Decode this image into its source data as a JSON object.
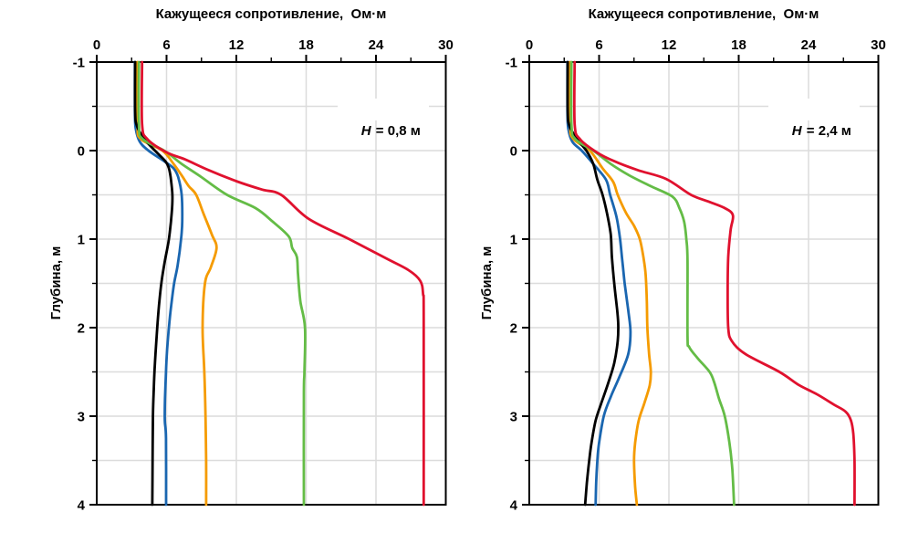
{
  "figure": {
    "background": "#ffffff",
    "frame_color": "#000000",
    "grid_color": "#dcdcdc"
  },
  "chart_data": [
    {
      "type": "line",
      "x_title": "Кажущееся сопротивление,  Ом·м",
      "y_title": "Глубина, м",
      "annotation": {
        "var": "H",
        "rest": " = 0,8 м"
      },
      "x_range": [
        0,
        30
      ],
      "y_range": [
        -1,
        4
      ],
      "x_major_ticks": [
        0,
        6,
        12,
        18,
        24,
        30
      ],
      "x_minor_ticks": [
        3,
        9,
        15,
        21,
        27
      ],
      "y_major_ticks": [
        -1,
        0,
        1,
        2,
        3,
        4
      ],
      "y_minor_ticks": [
        -0.5,
        0.5,
        1.5,
        2.5,
        3.5
      ],
      "x_grid": [
        6,
        12,
        18,
        24
      ],
      "y_grid": [
        -0.5,
        0,
        0.5,
        1,
        1.5,
        2,
        2.5,
        3,
        3.5
      ],
      "series": [
        {
          "name": "curve-blue",
          "color": "#1a66b0",
          "points": [
            [
              3.28,
              -1
            ],
            [
              3.28,
              -0.45
            ],
            [
              3.35,
              -0.25
            ],
            [
              3.7,
              -0.1
            ],
            [
              4.45,
              0
            ],
            [
              5.8,
              0.12
            ],
            [
              6.6,
              0.2
            ],
            [
              7.0,
              0.3
            ],
            [
              7.3,
              0.5
            ],
            [
              7.35,
              0.8
            ],
            [
              7.25,
              1.0
            ],
            [
              6.95,
              1.3
            ],
            [
              6.65,
              1.5
            ],
            [
              6.4,
              1.75
            ],
            [
              6.2,
              2.0
            ],
            [
              6.05,
              2.25
            ],
            [
              5.95,
              2.5
            ],
            [
              5.87,
              2.8
            ],
            [
              5.85,
              3.05
            ],
            [
              5.95,
              3.25
            ],
            [
              5.96,
              4.0
            ]
          ]
        },
        {
          "name": "curve-orange",
          "color": "#f59b00",
          "points": [
            [
              3.5,
              -1
            ],
            [
              3.5,
              -0.3
            ],
            [
              3.8,
              -0.13
            ],
            [
              5.65,
              0
            ],
            [
              6.6,
              0.15
            ],
            [
              7.3,
              0.28
            ],
            [
              7.9,
              0.4
            ],
            [
              8.55,
              0.5
            ],
            [
              9.2,
              0.72
            ],
            [
              9.9,
              0.95
            ],
            [
              10.3,
              1.1
            ],
            [
              9.8,
              1.32
            ],
            [
              9.3,
              1.5
            ],
            [
              9.1,
              2.0
            ],
            [
              9.25,
              2.5
            ],
            [
              9.35,
              3.0
            ],
            [
              9.4,
              3.5
            ],
            [
              9.4,
              4.0
            ]
          ]
        },
        {
          "name": "curve-black",
          "color": "#000000",
          "points": [
            [
              3.3,
              -1
            ],
            [
              3.3,
              -0.45
            ],
            [
              3.45,
              -0.28
            ],
            [
              4.1,
              -0.13
            ],
            [
              5.0,
              0
            ],
            [
              5.9,
              0.12
            ],
            [
              6.2,
              0.2
            ],
            [
              6.35,
              0.3
            ],
            [
              6.5,
              0.5
            ],
            [
              6.45,
              0.7
            ],
            [
              6.2,
              1.0
            ],
            [
              5.85,
              1.25
            ],
            [
              5.55,
              1.5
            ],
            [
              5.35,
              1.75
            ],
            [
              5.2,
              2.0
            ],
            [
              5.0,
              2.4
            ],
            [
              4.9,
              2.7
            ],
            [
              4.83,
              3.0
            ],
            [
              4.8,
              3.5
            ],
            [
              4.78,
              4.0
            ]
          ]
        },
        {
          "name": "curve-green",
          "color": "#64bc46",
          "points": [
            [
              3.62,
              -1
            ],
            [
              3.62,
              -0.3
            ],
            [
              3.95,
              -0.13
            ],
            [
              5.8,
              0
            ],
            [
              7.3,
              0.15
            ],
            [
              9.0,
              0.3
            ],
            [
              11.2,
              0.5
            ],
            [
              13.65,
              0.65
            ],
            [
              15.1,
              0.8
            ],
            [
              16.5,
              0.97
            ],
            [
              16.8,
              1.1
            ],
            [
              17.2,
              1.2
            ],
            [
              17.3,
              1.4
            ],
            [
              17.5,
              1.7
            ],
            [
              17.9,
              2.0
            ],
            [
              17.85,
              2.5
            ],
            [
              17.8,
              2.75
            ],
            [
              17.8,
              4.0
            ]
          ]
        },
        {
          "name": "curve-red",
          "color": "#e0112e",
          "points": [
            [
              3.9,
              -1
            ],
            [
              3.9,
              -0.3
            ],
            [
              4.35,
              -0.13
            ],
            [
              6.0,
              0.02
            ],
            [
              7.6,
              0.1
            ],
            [
              9.6,
              0.22
            ],
            [
              12.1,
              0.35
            ],
            [
              14.2,
              0.44
            ],
            [
              15.85,
              0.5
            ],
            [
              18.2,
              0.77
            ],
            [
              21.7,
              1.0
            ],
            [
              24.9,
              1.22
            ],
            [
              26.8,
              1.35
            ],
            [
              27.8,
              1.47
            ],
            [
              28.05,
              1.62
            ],
            [
              28.1,
              1.9
            ],
            [
              28.1,
              4.0
            ]
          ]
        }
      ]
    },
    {
      "type": "line",
      "x_title": "Кажущееся сопротивление,  Ом·м",
      "y_title": "Глубина, м",
      "annotation": {
        "var": "H",
        "rest": " = 2,4 м"
      },
      "x_range": [
        0,
        30
      ],
      "y_range": [
        -1,
        4
      ],
      "x_major_ticks": [
        0,
        6,
        12,
        18,
        24,
        30
      ],
      "x_minor_ticks": [
        3,
        9,
        15,
        21,
        27
      ],
      "y_major_ticks": [
        -1,
        0,
        1,
        2,
        3,
        4
      ],
      "y_minor_ticks": [
        -0.5,
        0.5,
        1.5,
        2.5,
        3.5
      ],
      "x_grid": [
        6,
        12,
        18,
        24
      ],
      "y_grid": [
        -0.5,
        0,
        0.5,
        1,
        1.5,
        2,
        2.5,
        3,
        3.5
      ],
      "series": [
        {
          "name": "curve-blue",
          "color": "#1a66b0",
          "points": [
            [
              3.28,
              -1
            ],
            [
              3.28,
              -0.45
            ],
            [
              3.35,
              -0.25
            ],
            [
              3.7,
              -0.1
            ],
            [
              4.5,
              0
            ],
            [
              5.5,
              0.15
            ],
            [
              6.6,
              0.33
            ],
            [
              6.95,
              0.5
            ],
            [
              7.5,
              0.75
            ],
            [
              7.8,
              1.0
            ],
            [
              8.0,
              1.25
            ],
            [
              8.2,
              1.5
            ],
            [
              8.5,
              1.8
            ],
            [
              8.7,
              2.05
            ],
            [
              8.5,
              2.3
            ],
            [
              7.7,
              2.57
            ],
            [
              7.0,
              2.78
            ],
            [
              6.4,
              3.0
            ],
            [
              6.0,
              3.3
            ],
            [
              5.85,
              3.5
            ],
            [
              5.75,
              3.75
            ],
            [
              5.7,
              4.0
            ]
          ]
        },
        {
          "name": "curve-orange",
          "color": "#f59b00",
          "points": [
            [
              3.5,
              -1
            ],
            [
              3.5,
              -0.3
            ],
            [
              3.8,
              -0.13
            ],
            [
              5.2,
              0
            ],
            [
              6.3,
              0.2
            ],
            [
              7.2,
              0.35
            ],
            [
              7.6,
              0.5
            ],
            [
              8.3,
              0.7
            ],
            [
              9.0,
              0.85
            ],
            [
              9.5,
              1.0
            ],
            [
              9.8,
              1.2
            ],
            [
              10.0,
              1.4
            ],
            [
              10.1,
              1.7
            ],
            [
              10.15,
              2.0
            ],
            [
              10.3,
              2.3
            ],
            [
              10.45,
              2.5
            ],
            [
              10.35,
              2.65
            ],
            [
              9.9,
              2.85
            ],
            [
              9.4,
              3.05
            ],
            [
              9.1,
              3.3
            ],
            [
              9.0,
              3.5
            ],
            [
              9.1,
              3.8
            ],
            [
              9.25,
              4.0
            ]
          ]
        },
        {
          "name": "curve-black",
          "color": "#000000",
          "points": [
            [
              3.3,
              -1
            ],
            [
              3.3,
              -0.45
            ],
            [
              3.45,
              -0.28
            ],
            [
              4.1,
              -0.13
            ],
            [
              4.9,
              0
            ],
            [
              5.5,
              0.15
            ],
            [
              5.85,
              0.33
            ],
            [
              6.3,
              0.5
            ],
            [
              6.7,
              0.72
            ],
            [
              7.0,
              0.95
            ],
            [
              7.1,
              1.2
            ],
            [
              7.3,
              1.5
            ],
            [
              7.55,
              1.8
            ],
            [
              7.65,
              1.97
            ],
            [
              7.6,
              2.15
            ],
            [
              7.3,
              2.4
            ],
            [
              6.8,
              2.62
            ],
            [
              6.2,
              2.85
            ],
            [
              5.7,
              3.05
            ],
            [
              5.35,
              3.3
            ],
            [
              5.15,
              3.5
            ],
            [
              4.95,
              3.75
            ],
            [
              4.8,
              4.0
            ]
          ]
        },
        {
          "name": "curve-green",
          "color": "#64bc46",
          "points": [
            [
              3.62,
              -1
            ],
            [
              3.62,
              -0.3
            ],
            [
              3.95,
              -0.13
            ],
            [
              5.5,
              0
            ],
            [
              7.0,
              0.15
            ],
            [
              8.6,
              0.28
            ],
            [
              10.4,
              0.4
            ],
            [
              12.3,
              0.52
            ],
            [
              12.9,
              0.65
            ],
            [
              13.3,
              0.8
            ],
            [
              13.5,
              1.0
            ],
            [
              13.6,
              1.25
            ],
            [
              13.6,
              2.1
            ],
            [
              13.75,
              2.22
            ],
            [
              14.5,
              2.35
            ],
            [
              15.5,
              2.5
            ],
            [
              15.9,
              2.62
            ],
            [
              16.3,
              2.8
            ],
            [
              16.8,
              3.0
            ],
            [
              17.2,
              3.3
            ],
            [
              17.45,
              3.6
            ],
            [
              17.6,
              4.0
            ]
          ]
        },
        {
          "name": "curve-red",
          "color": "#e0112e",
          "points": [
            [
              3.9,
              -1
            ],
            [
              3.9,
              -0.3
            ],
            [
              4.35,
              -0.13
            ],
            [
              5.8,
              0.02
            ],
            [
              7.3,
              0.12
            ],
            [
              9.3,
              0.22
            ],
            [
              11.75,
              0.32
            ],
            [
              13.9,
              0.5
            ],
            [
              15.5,
              0.58
            ],
            [
              16.8,
              0.65
            ],
            [
              17.5,
              0.73
            ],
            [
              17.3,
              0.9
            ],
            [
              17.1,
              1.2
            ],
            [
              17.05,
              1.6
            ],
            [
              17.1,
              2.0
            ],
            [
              17.4,
              2.15
            ],
            [
              18.6,
              2.3
            ],
            [
              21.5,
              2.5
            ],
            [
              23.2,
              2.65
            ],
            [
              24.7,
              2.75
            ],
            [
              26.2,
              2.87
            ],
            [
              27.2,
              2.95
            ],
            [
              27.65,
              3.05
            ],
            [
              27.85,
              3.2
            ],
            [
              27.95,
              3.5
            ],
            [
              27.95,
              4.0
            ]
          ]
        }
      ]
    }
  ]
}
